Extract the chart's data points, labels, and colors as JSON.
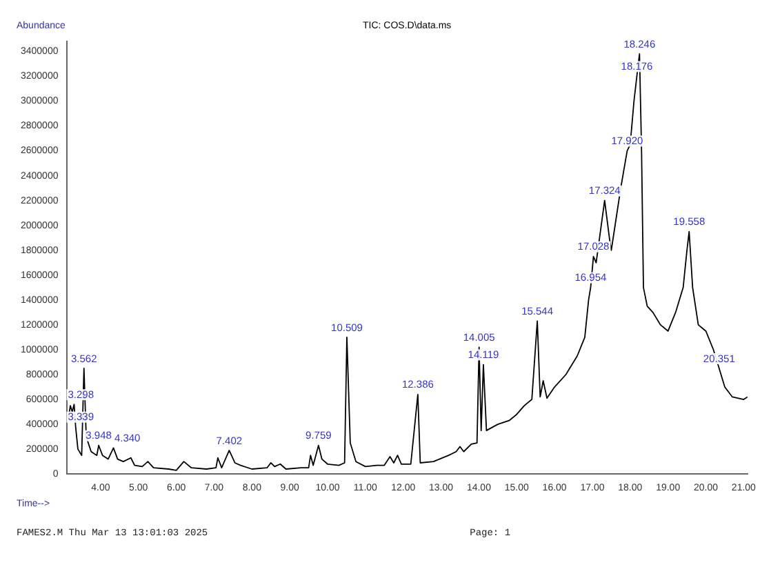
{
  "chart_data": {
    "type": "line",
    "title": "TIC: COS.D\\data.ms",
    "xlabel": "Time-->",
    "ylabel": "Abundance",
    "x": [
      3.15,
      3.2,
      3.25,
      3.3,
      3.34,
      3.4,
      3.5,
      3.56,
      3.62,
      3.75,
      3.9,
      3.95,
      4.05,
      4.2,
      4.34,
      4.45,
      4.6,
      4.8,
      4.9,
      5.1,
      5.25,
      5.4,
      5.8,
      6.0,
      6.2,
      6.4,
      6.8,
      7.05,
      7.1,
      7.2,
      7.4,
      7.55,
      7.7,
      8.0,
      8.4,
      8.5,
      8.6,
      8.75,
      8.9,
      9.3,
      9.5,
      9.55,
      9.62,
      9.76,
      9.85,
      10.0,
      10.3,
      10.45,
      10.51,
      10.6,
      10.75,
      11.0,
      11.3,
      11.5,
      11.65,
      11.75,
      11.85,
      11.95,
      12.2,
      12.386,
      12.45,
      12.8,
      13.2,
      13.4,
      13.5,
      13.6,
      13.8,
      13.95,
      14.005,
      14.06,
      14.119,
      14.2,
      14.5,
      14.8,
      15.0,
      15.2,
      15.4,
      15.544,
      15.62,
      15.7,
      15.8,
      16.0,
      16.3,
      16.6,
      16.8,
      16.9,
      16.954,
      17.028,
      17.1,
      17.324,
      17.45,
      17.5,
      17.6,
      17.75,
      17.92,
      18.0,
      18.1,
      18.176,
      18.246,
      18.3,
      18.35,
      18.45,
      18.6,
      18.8,
      19.0,
      19.2,
      19.4,
      19.5,
      19.558,
      19.65,
      19.8,
      20.0,
      20.2,
      20.351,
      20.5,
      20.7,
      21.0,
      21.1
    ],
    "series": [
      {
        "color": "#000000",
        "values": [
          450000,
          550000,
          500000,
          560000,
          380000,
          200000,
          150000,
          850000,
          300000,
          180000,
          150000,
          230000,
          150000,
          120000,
          210000,
          120000,
          100000,
          130000,
          70000,
          60000,
          100000,
          50000,
          40000,
          30000,
          100000,
          50000,
          40000,
          50000,
          130000,
          50000,
          190000,
          90000,
          70000,
          40000,
          50000,
          90000,
          60000,
          80000,
          40000,
          50000,
          50000,
          150000,
          70000,
          230000,
          120000,
          80000,
          70000,
          90000,
          1100000,
          250000,
          100000,
          60000,
          70000,
          70000,
          140000,
          90000,
          150000,
          80000,
          80000,
          640000,
          90000,
          100000,
          150000,
          180000,
          220000,
          180000,
          240000,
          250000,
          1020000,
          350000,
          880000,
          350000,
          400000,
          430000,
          480000,
          550000,
          600000,
          1230000,
          620000,
          750000,
          610000,
          700000,
          800000,
          950000,
          1100000,
          1400000,
          1500000,
          1750000,
          1700000,
          2200000,
          1900000,
          1800000,
          2000000,
          2300000,
          2600000,
          2650000,
          3000000,
          3200000,
          3380000,
          2600000,
          1500000,
          1350000,
          1300000,
          1200000,
          1150000,
          1300000,
          1500000,
          1800000,
          1950000,
          1500000,
          1200000,
          1150000,
          1000000,
          850000,
          700000,
          620000,
          600000,
          620000
        ]
      }
    ],
    "xlim": [
      3.1,
      21.1
    ],
    "xticks": [
      {
        "value": 4,
        "label": "4.00"
      },
      {
        "value": 5,
        "label": "5.00"
      },
      {
        "value": 6,
        "label": "6.00"
      },
      {
        "value": 7,
        "label": "7.00"
      },
      {
        "value": 8,
        "label": "8.00"
      },
      {
        "value": 9,
        "label": "9.00"
      },
      {
        "value": 10,
        "label": "10.00"
      },
      {
        "value": 11,
        "label": "11.00"
      },
      {
        "value": 12,
        "label": "12.00"
      },
      {
        "value": 13,
        "label": "13.00"
      },
      {
        "value": 14,
        "label": "14.00"
      },
      {
        "value": 15,
        "label": "15.00"
      },
      {
        "value": 16,
        "label": "16.00"
      },
      {
        "value": 17,
        "label": "17.00"
      },
      {
        "value": 18,
        "label": "18.00"
      },
      {
        "value": 19,
        "label": "19.00"
      },
      {
        "value": 20,
        "label": "20.00"
      },
      {
        "value": 21,
        "label": "21.00"
      }
    ],
    "ylim": [
      0,
      3480000
    ],
    "yticks": [
      0,
      200000,
      400000,
      600000,
      800000,
      1000000,
      1200000,
      1400000,
      1600000,
      1800000,
      2000000,
      2200000,
      2400000,
      2600000,
      2800000,
      3000000,
      3200000,
      3400000
    ],
    "grid": false,
    "legend": false,
    "marker": "none",
    "line_style": "solid",
    "annotations": [
      {
        "text": "3.298",
        "x": 3.3,
        "y": 560000
      },
      {
        "text": "3.339",
        "x": 3.34,
        "y": 380000
      },
      {
        "text": "3.562",
        "x": 3.56,
        "y": 850000
      },
      {
        "text": "3.948",
        "x": 3.95,
        "y": 230000
      },
      {
        "text": "4.340",
        "x": 4.34,
        "y": 210000
      },
      {
        "text": "7.402",
        "x": 7.4,
        "y": 190000
      },
      {
        "text": "9.759",
        "x": 9.76,
        "y": 230000
      },
      {
        "text": "10.509",
        "x": 10.51,
        "y": 1100000
      },
      {
        "text": "12.386",
        "x": 12.386,
        "y": 640000
      },
      {
        "text": "14.005",
        "x": 14.005,
        "y": 1020000
      },
      {
        "text": "14.119",
        "x": 14.119,
        "y": 880000
      },
      {
        "text": "15.544",
        "x": 15.544,
        "y": 1230000
      },
      {
        "text": "16.954",
        "x": 16.954,
        "y": 1500000
      },
      {
        "text": "17.028",
        "x": 17.028,
        "y": 1750000
      },
      {
        "text": "17.324",
        "x": 17.324,
        "y": 2200000
      },
      {
        "text": "17.920",
        "x": 17.92,
        "y": 2600000
      },
      {
        "text": "18.176",
        "x": 18.176,
        "y": 3200000
      },
      {
        "text": "18.246",
        "x": 18.246,
        "y": 3380000
      },
      {
        "text": "19.558",
        "x": 19.558,
        "y": 1950000
      },
      {
        "text": "20.351",
        "x": 20.351,
        "y": 850000
      },
      "FAMES2.M Thu Mar 13 13:01:03 2025",
      "Page: 1"
    ]
  }
}
